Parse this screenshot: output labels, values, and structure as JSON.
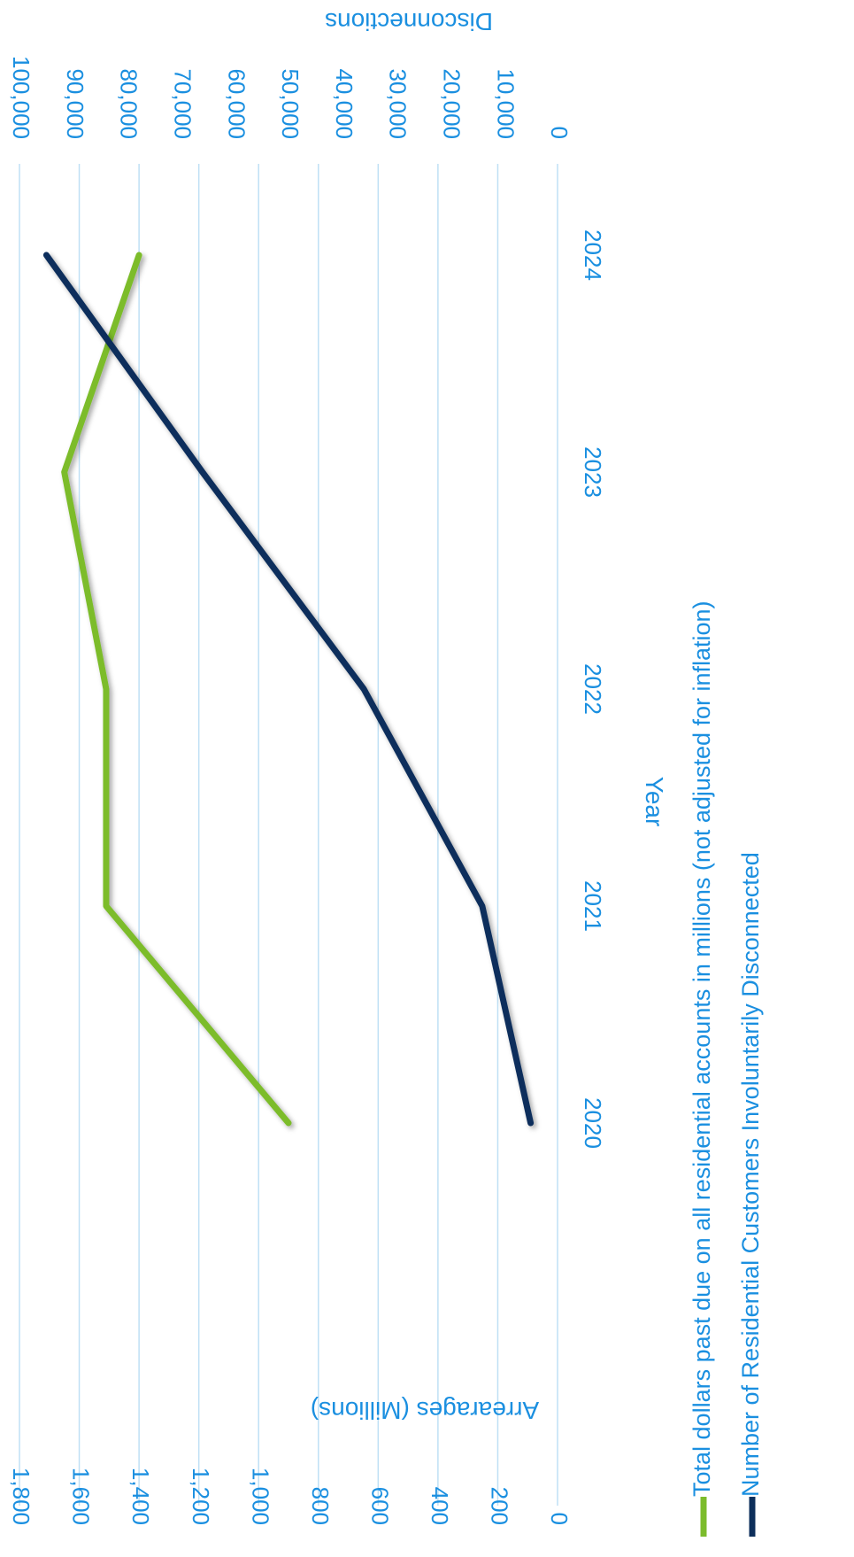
{
  "chart_data": {
    "type": "line",
    "title": "",
    "orientation": "rotated-90-clockwise",
    "x": [
      "2020",
      "2021",
      "2022",
      "2023",
      "2024"
    ],
    "xlabel": "Year",
    "y_left": {
      "label": "Arrearages (Millions)",
      "lim": [
        0,
        1800
      ],
      "ticks": [
        "0",
        "200",
        "400",
        "600",
        "800",
        "1,000",
        "1,200",
        "1,400",
        "1,600",
        "1,800"
      ]
    },
    "y_right": {
      "label": "Disconnections",
      "lim": [
        0,
        100000
      ],
      "ticks": [
        "0",
        "10,000",
        "20,000",
        "30,000",
        "40,000",
        "50,000",
        "60,000",
        "70,000",
        "80,000",
        "90,000",
        "100,000"
      ]
    },
    "grid": true,
    "legend_position": "bottom",
    "series": [
      {
        "name": "Total dollars past due on all residential accounts in millions (not adjusted for inflation)",
        "axis": "left",
        "color": "#7cbc2c",
        "values": [
          900,
          1510,
          1510,
          1650,
          1400
        ]
      },
      {
        "name": "Number of Residential Customers Involuntarily Disconnected",
        "axis": "right",
        "color": "#0d2f5b",
        "values": [
          5000,
          14000,
          36000,
          66000,
          95000
        ]
      }
    ]
  },
  "colors": {
    "text": "#1a8fe0",
    "grid": "#bfe0f5"
  }
}
